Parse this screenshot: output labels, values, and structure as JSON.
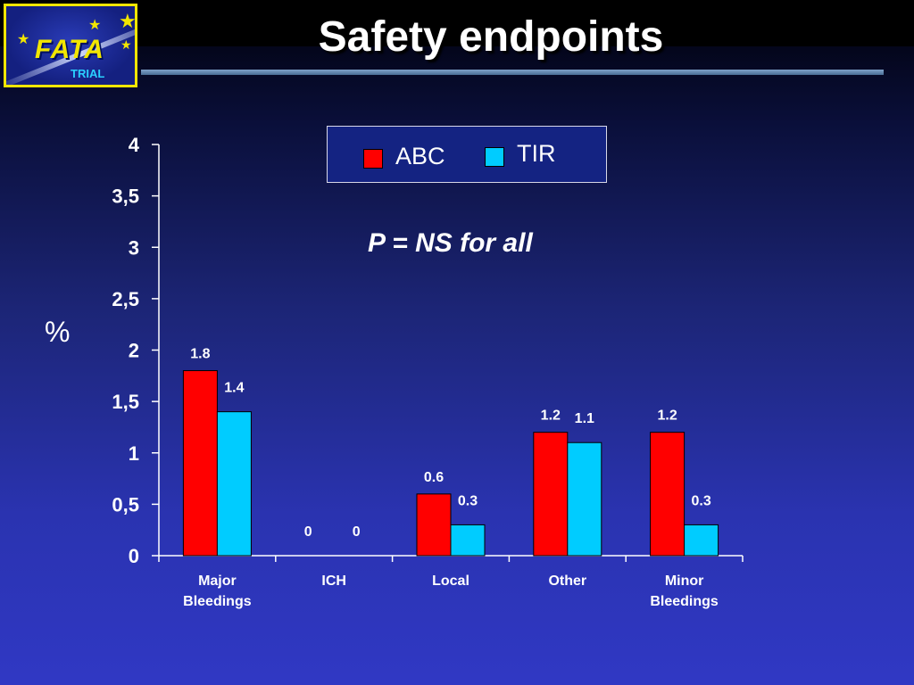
{
  "slide": {
    "title": "Safety endpoints",
    "annotation": "P = NS for all",
    "y_axis_symbol": "%"
  },
  "logo": {
    "name": "FATA",
    "sub": "TRIAL"
  },
  "colors": {
    "ABC": "#ff0000",
    "TIR": "#00ccff",
    "text": "#ffffff",
    "logo_border": "#f2e600"
  },
  "chart_data": {
    "type": "bar",
    "categories": [
      "Major Bleedings",
      "ICH",
      "Local",
      "Other",
      "Minor Bleedings"
    ],
    "series": [
      {
        "name": "ABC",
        "values": [
          1.8,
          0,
          0.6,
          1.2,
          1.2
        ]
      },
      {
        "name": "TIR",
        "values": [
          1.4,
          0,
          0.3,
          1.1,
          0.3
        ]
      }
    ],
    "ylabel": "%",
    "ylim": [
      0,
      4
    ],
    "yticks": [
      "0",
      "0,5",
      "1",
      "1,5",
      "2",
      "2,5",
      "3",
      "3,5",
      "4"
    ],
    "grid": false,
    "legend_position": "top-center"
  }
}
